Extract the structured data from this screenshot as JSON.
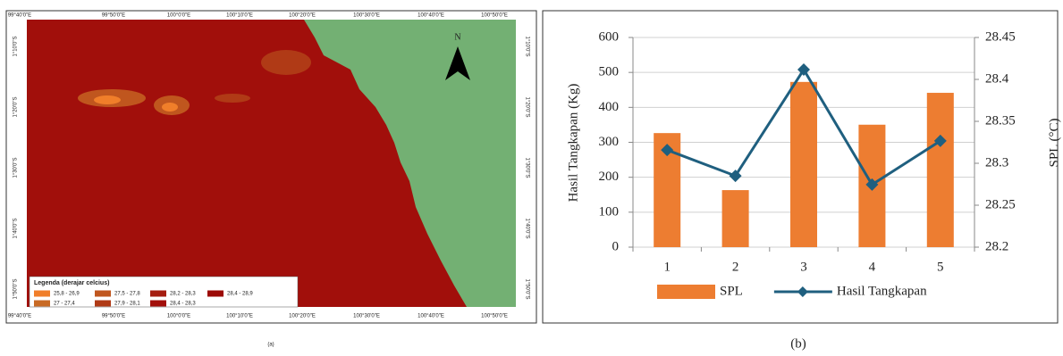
{
  "map": {
    "lon_labels": [
      "99°40'0\"E",
      "99°50'0\"E",
      "100°0'0\"E",
      "100°10'0\"E",
      "100°20'0\"E",
      "100°30'0\"E",
      "100°40'0\"E",
      "100°50'0\"E"
    ],
    "lat_labels": [
      "1°10'0\"S",
      "1°20'0\"S",
      "1°30'0\"S",
      "1°40'0\"S",
      "1°50'0\"S"
    ],
    "north": "N",
    "legend_title": "Legenda (derajar celcius)",
    "legend_items": [
      {
        "label": "25,8 - 26,9",
        "color": "#f07e2a"
      },
      {
        "label": "27,5 - 27,8",
        "color": "#c0561e"
      },
      {
        "label": "28,2 - 28,3",
        "color": "#a51d10"
      },
      {
        "label": "28,4 - 28,9",
        "color": "#9c0a06"
      },
      {
        "label": "27 - 27,4",
        "color": "#c86a24"
      },
      {
        "label": "27,9 - 28,1",
        "color": "#b03a16"
      },
      {
        "label": "28,4 - 28,3",
        "color": "#a20f0a"
      }
    ],
    "caption": "(a)"
  },
  "chart_data": {
    "type": "bar_line",
    "caption": "(b)",
    "y_label": "Hasil Tangkapan (Kg)",
    "y2_label": "SPL (°C)",
    "categories": [
      "1",
      "2",
      "3",
      "4",
      "5"
    ],
    "series": [
      {
        "name": "SPL",
        "type": "bar",
        "axis": "y2",
        "color": "#ed7d31",
        "values": [
          28.336,
          28.268,
          28.397,
          28.346,
          28.384
        ]
      },
      {
        "name": "Hasil Tangkapan",
        "type": "line",
        "color": "#1f5f7f",
        "values": [
          278,
          204,
          508,
          179,
          304
        ]
      }
    ],
    "ylim": [
      0,
      600
    ],
    "yticks": [
      0,
      100,
      200,
      300,
      400,
      500,
      600
    ],
    "y2lim": [
      28.2,
      28.45
    ],
    "y2ticks": [
      28.2,
      28.25,
      28.3,
      28.35,
      28.4,
      28.45
    ],
    "grid": true
  }
}
